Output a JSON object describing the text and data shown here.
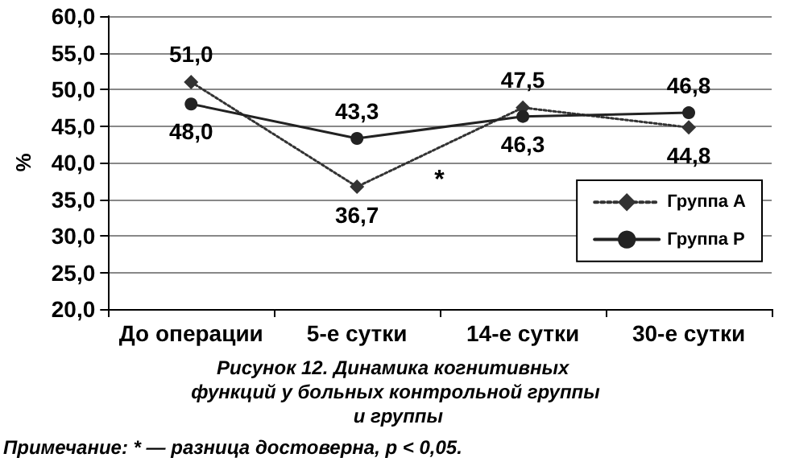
{
  "chart_data": {
    "type": "line",
    "title": "Рисунок 12. Динамика когнитивных функций у больных контрольной группы и группы",
    "ylabel": "%",
    "categories": [
      "До операции",
      "5-е сутки",
      "14-е сутки",
      "30-е сутки"
    ],
    "series": [
      {
        "name": "Группа А",
        "color": "#333333",
        "values": [
          51.0,
          36.7,
          47.5,
          44.8
        ],
        "value_labels": [
          "51,0",
          "36,7",
          "47,5",
          "44,8"
        ],
        "marker": "diamond",
        "line_style": "dotted"
      },
      {
        "name": "Группа Р",
        "color": "#222222",
        "values": [
          48.0,
          43.3,
          46.3,
          46.8
        ],
        "value_labels": [
          "48,0",
          "43,3",
          "46,3",
          "46,8"
        ],
        "marker": "circle",
        "line_style": "solid"
      }
    ],
    "ylim": [
      20,
      60
    ],
    "yticks": [
      {
        "value": 20,
        "label": "20,0"
      },
      {
        "value": 25,
        "label": "25,0"
      },
      {
        "value": 30,
        "label": "30,0"
      },
      {
        "value": 35,
        "label": "35,0"
      },
      {
        "value": 40,
        "label": "40,0"
      },
      {
        "value": 45,
        "label": "45,0"
      },
      {
        "value": 50,
        "label": "50,0"
      },
      {
        "value": 55,
        "label": "55,0"
      },
      {
        "value": 60,
        "label": "60,0"
      }
    ],
    "grid": "y",
    "legend": "right",
    "annotations": [
      {
        "text": "*",
        "x": "5-е сутки",
        "y": 38
      },
      "Примечание: * — разница достоверна, p < 0,05."
    ]
  }
}
